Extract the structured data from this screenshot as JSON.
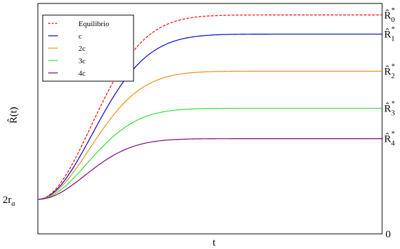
{
  "chart_data": {
    "type": "line",
    "xlabel": "t",
    "ylabel": "R̂(t)",
    "x_range": [
      0,
      10
    ],
    "ylim": [
      0,
      1
    ],
    "y_start": 0.15,
    "y_start_label": "2r",
    "y_start_label_sub": "a",
    "right_axis_zero_label": "0",
    "grid": false,
    "legend_position": "top-left",
    "series": [
      {
        "name": "Equilibrio",
        "color": "#ff0000",
        "dashed": true,
        "asymptote": 0.95,
        "rate": 0.8,
        "end_label": "R̂",
        "end_sub": "0",
        "end_sup": "*"
      },
      {
        "name": "c",
        "color": "#0000cc",
        "dashed": false,
        "asymptote": 0.867,
        "rate": 0.78,
        "end_label": "R̂",
        "end_sub": "1",
        "end_sup": "*"
      },
      {
        "name": "2c",
        "color": "#ee8a1a",
        "dashed": false,
        "asymptote": 0.706,
        "rate": 0.82,
        "end_label": "R̂",
        "end_sub": "2",
        "end_sup": "*"
      },
      {
        "name": "3c",
        "color": "#33dd33",
        "dashed": false,
        "asymptote": 0.545,
        "rate": 0.86,
        "end_label": "R̂",
        "end_sub": "3",
        "end_sup": "*"
      },
      {
        "name": "4c",
        "color": "#800080",
        "dashed": false,
        "asymptote": 0.413,
        "rate": 0.9,
        "end_label": "R̂",
        "end_sub": "4",
        "end_sup": "*"
      }
    ]
  }
}
